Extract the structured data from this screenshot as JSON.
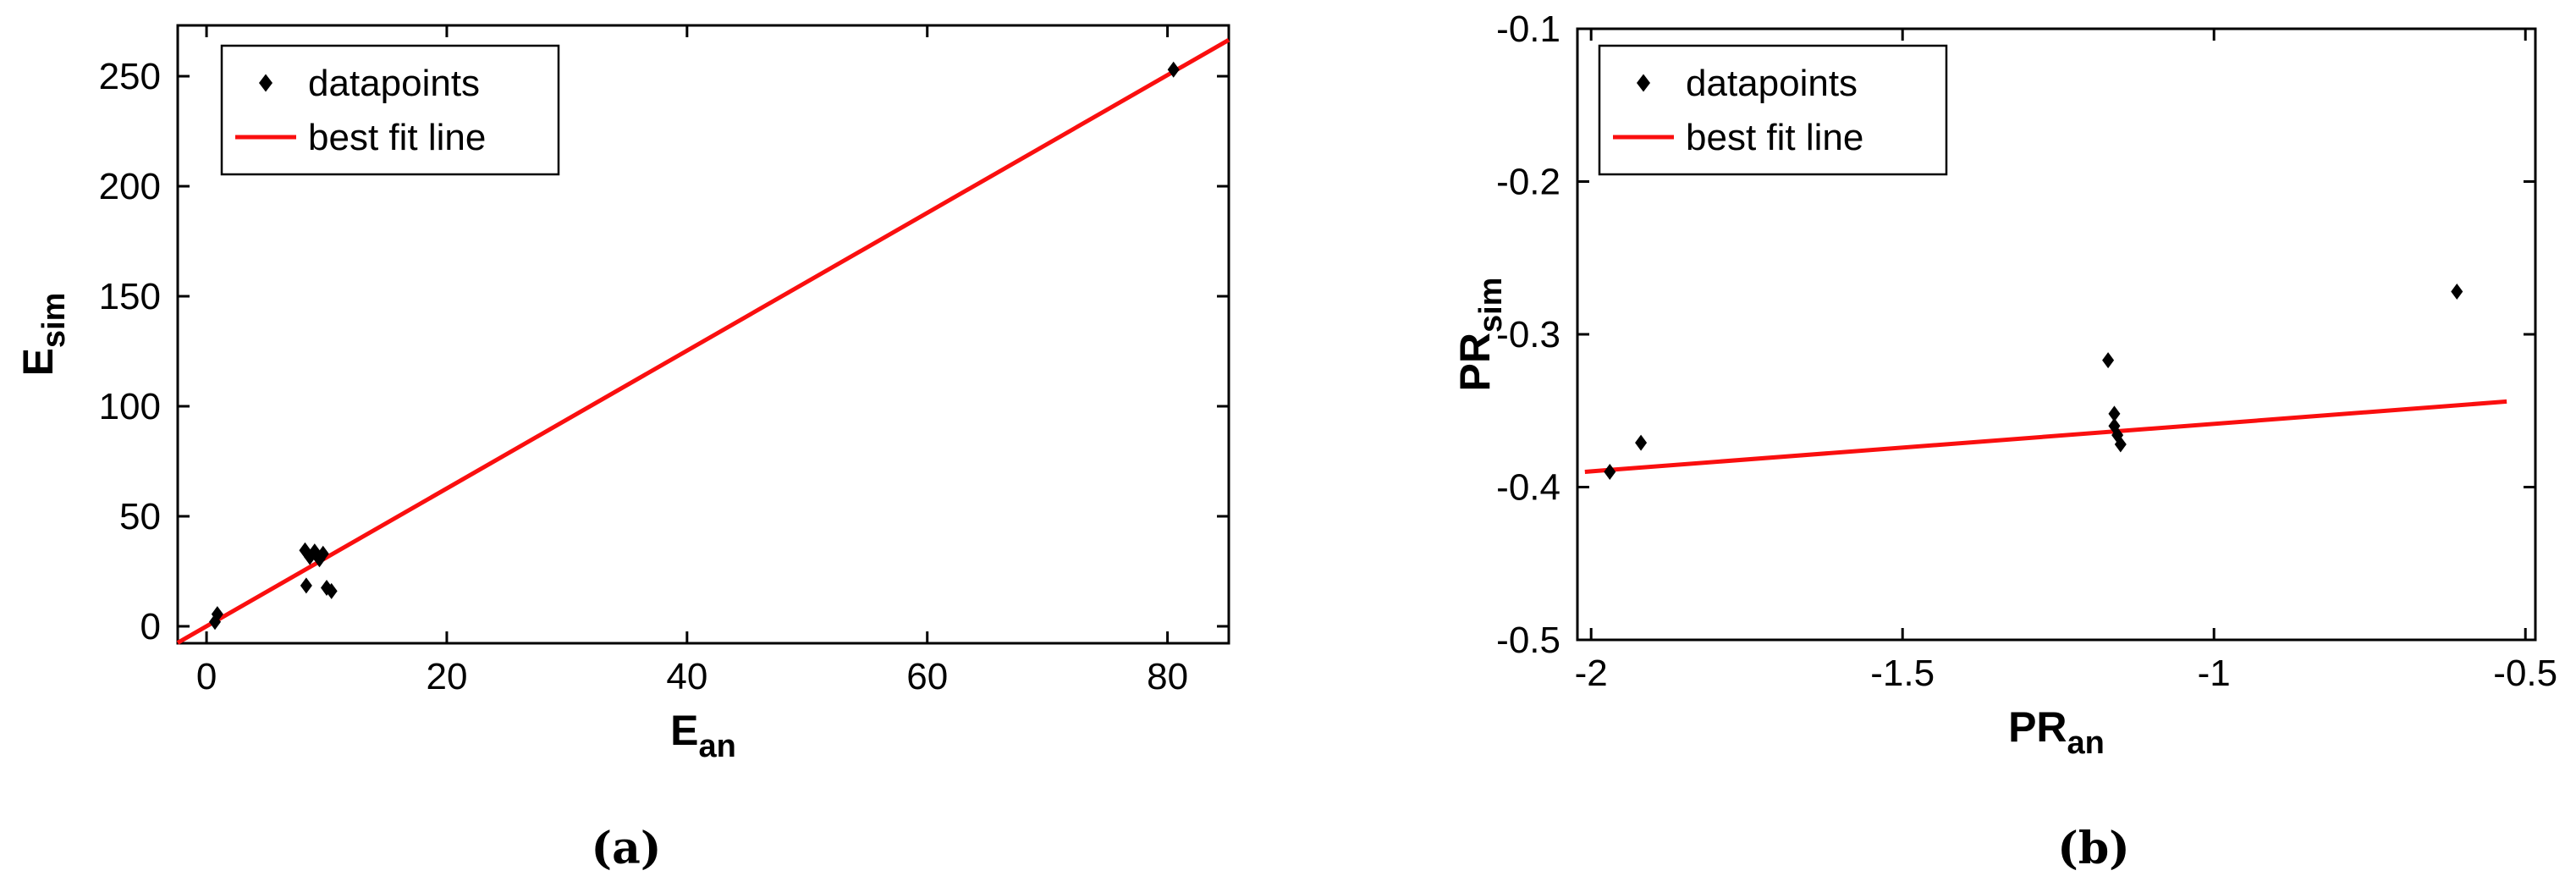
{
  "figure": {
    "background": "#ffffff",
    "captions": [
      {
        "label": "(a)"
      },
      {
        "label": "(b)"
      }
    ]
  },
  "chart_data": [
    {
      "type": "scatter",
      "title": "",
      "xlabel": {
        "text": "E_an",
        "main": "E",
        "sub": "an"
      },
      "ylabel": {
        "text": "E_sim",
        "main": "E",
        "sub": "sim"
      },
      "xlim": [
        -2.4,
        85.1
      ],
      "ylim": [
        -7.7,
        273.1
      ],
      "xticks": [
        0,
        20,
        40,
        60,
        80
      ],
      "xtick_labels": [
        "0",
        "20",
        "40",
        "60",
        "80"
      ],
      "yticks": [
        0,
        50,
        100,
        150,
        200,
        250
      ],
      "ytick_labels": [
        "0",
        "50",
        "100",
        "150",
        "200",
        "250"
      ],
      "grid": false,
      "legend_position": "upper-left",
      "marker_color": "#000000",
      "line_color": "#fa0f0f",
      "legend": [
        {
          "label": "datapoints",
          "marker": "diamond",
          "color": "#000000"
        },
        {
          "label": "best fit line",
          "marker": "line",
          "color": "#fa0f0f"
        }
      ],
      "points": [
        [
          0.7,
          2.0
        ],
        [
          0.9,
          5.5
        ],
        [
          8.2,
          34.5
        ],
        [
          8.6,
          31.5
        ],
        [
          9.0,
          34.0
        ],
        [
          9.4,
          30.5
        ],
        [
          9.7,
          33.0
        ],
        [
          8.3,
          18.5
        ],
        [
          10.0,
          17.5
        ],
        [
          10.4,
          16.0
        ],
        [
          80.5,
          253.0
        ]
      ],
      "fit_line": [
        [
          -2.4,
          -7.5
        ],
        [
          85.1,
          266.5
        ]
      ]
    },
    {
      "type": "scatter",
      "title": "",
      "xlabel": {
        "text": "PR_an",
        "main": "PR",
        "sub": "an"
      },
      "ylabel": {
        "text": "PR_sim",
        "main": "PR",
        "sub": "sim"
      },
      "xlim": [
        -2.022,
        -0.484
      ],
      "ylim": [
        -0.5,
        -0.1
      ],
      "xticks": [
        -2,
        -1.5,
        -1,
        -0.5
      ],
      "xtick_labels": [
        "-2",
        "-1.5",
        "-1",
        "-0.5"
      ],
      "yticks": [
        -0.5,
        -0.4,
        -0.3,
        -0.2,
        -0.1
      ],
      "ytick_labels": [
        "-0.5",
        "-0.4",
        "-0.3",
        "-0.2",
        "-0.1"
      ],
      "grid": false,
      "legend_position": "upper-left",
      "marker_color": "#000000",
      "line_color": "#fa0f0f",
      "legend": [
        {
          "label": "datapoints",
          "marker": "diamond",
          "color": "#000000"
        },
        {
          "label": "best fit line",
          "marker": "line",
          "color": "#fa0f0f"
        }
      ],
      "points": [
        [
          -1.97,
          -0.39
        ],
        [
          -1.92,
          -0.371
        ],
        [
          -1.17,
          -0.317
        ],
        [
          -1.16,
          -0.352
        ],
        [
          -1.16,
          -0.36
        ],
        [
          -1.155,
          -0.366
        ],
        [
          -1.15,
          -0.372
        ],
        [
          -0.61,
          -0.272
        ]
      ],
      "fit_line": [
        [
          -2.01,
          -0.39
        ],
        [
          -0.53,
          -0.344
        ]
      ]
    }
  ]
}
